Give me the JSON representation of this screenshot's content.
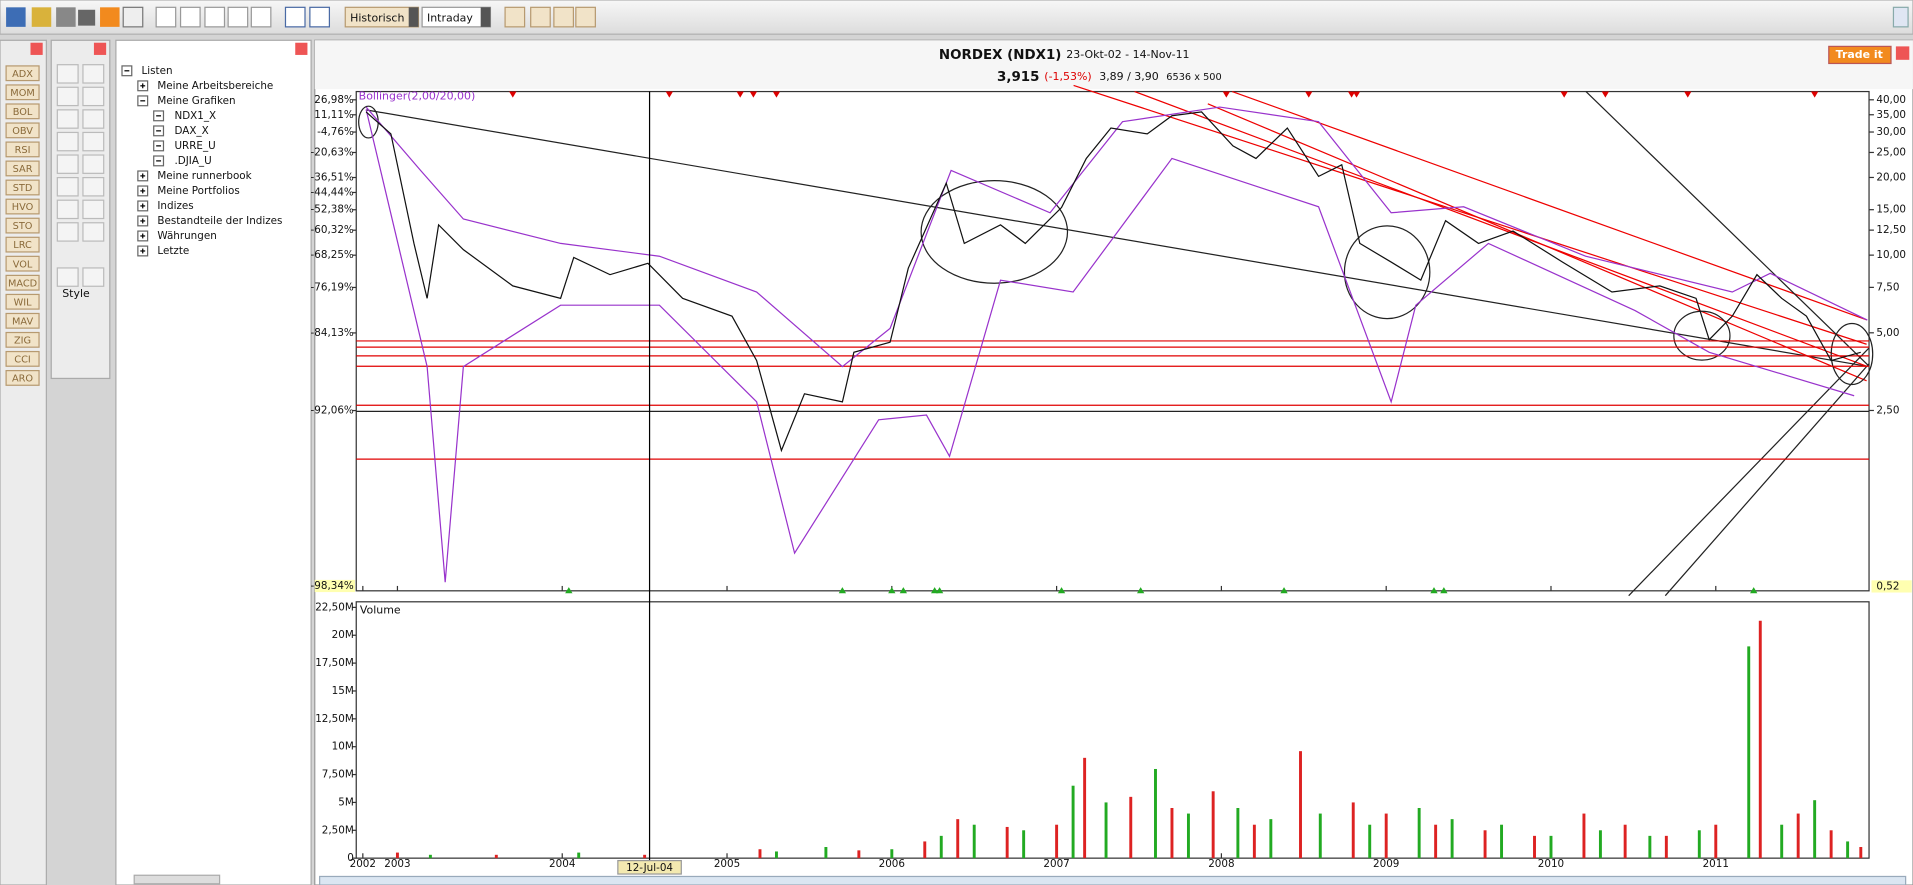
{
  "toolbar": {
    "period": "Historisch",
    "interval": "Intraday"
  },
  "indicators": [
    "ADX",
    "MOM",
    "BOL",
    "OBV",
    "RSI",
    "SAR",
    "STD",
    "HVO",
    "STO",
    "LRC",
    "VOL",
    "MACD",
    "WIL",
    "MAV",
    "ZIG",
    "CCI",
    "ARO"
  ],
  "tools": {
    "style": "Style"
  },
  "sidebar": {
    "tree": [
      "Listen",
      "Meine Arbeitsbereiche",
      "Meine Grafiken",
      "NDX1_X",
      "DAX_X",
      "URRE_U",
      ".DJIA_U",
      "Meine runnerbook",
      "Meine Portfolios",
      "Indizes",
      "Bestandteile der Indizes",
      "Währungen",
      "Letzte"
    ]
  },
  "window": {
    "title": "NORDEX (NDX1)",
    "range": "23-Okt-02 - 14-Nov-11",
    "last": "3,915",
    "change": "(-1,53%)",
    "bid_ask": "3,89 / 3,90",
    "size": "6536 x 500",
    "trade_button": "Trade it"
  },
  "chart_data": [
    {
      "type": "line",
      "log_scale": true,
      "x": [
        2002.81,
        2002.96,
        2003.1,
        2003.18,
        2003.25,
        2003.4,
        2003.7,
        2003.99,
        2004.07,
        2004.29,
        2004.52,
        2004.73,
        2005.03,
        2005.18,
        2005.33,
        2005.47,
        2005.7,
        2005.77,
        2005.99,
        2006.1,
        2006.33,
        2006.44,
        2006.66,
        2006.81,
        2007.03,
        2007.18,
        2007.33,
        2007.55,
        2007.7,
        2007.88,
        2008.07,
        2008.21,
        2008.4,
        2008.59,
        2008.73,
        2008.84,
        2009.03,
        2009.21,
        2009.36,
        2009.56,
        2009.77,
        2010.07,
        2010.37,
        2010.66,
        2010.88,
        2010.96,
        2011.1,
        2011.25,
        2011.4,
        2011.55,
        2011.7,
        2011.88
      ],
      "series": [
        {
          "color": "#111111",
          "values": [
            35.9,
            29.5,
            11.1,
            6.8,
            13.1,
            10.5,
            7.6,
            6.8,
            9.8,
            8.4,
            9.3,
            6.8,
            5.8,
            3.9,
            1.75,
            2.9,
            2.7,
            4.2,
            4.6,
            8.9,
            19.0,
            11.1,
            13.1,
            11.1,
            15.3,
            23.7,
            31.1,
            29.5,
            34.7,
            35.9,
            26.5,
            23.7,
            31.1,
            20.2,
            22.4,
            11.1,
            9.4,
            8.0,
            13.6,
            11.1,
            12.4,
            9.4,
            7.2,
            7.6,
            6.8,
            4.7,
            5.8,
            8.4,
            6.8,
            5.8,
            3.9,
            4.2
          ]
        }
      ],
      "bands": {
        "label": "Bollinger(2,00/20,00)",
        "color": "#9933cc",
        "upper": {
          "x": [
            2002.81,
            2003.14,
            2003.4,
            2003.99,
            2004.59,
            2005.18,
            2005.7,
            2005.99,
            2006.36,
            2006.96,
            2007.4,
            2007.99,
            2008.59,
            2009.03,
            2009.47,
            2010.21,
            2011.1,
            2011.33,
            2011.92
          ],
          "values": [
            37.5,
            21.3,
            13.8,
            11.1,
            9.9,
            7.2,
            3.7,
            5.2,
            21.3,
            14.6,
            32.9,
            37.5,
            32.9,
            14.6,
            15.4,
            9.9,
            7.2,
            8.5,
            5.6
          ]
        },
        "lower": {
          "x": [
            2002.81,
            2003.18,
            2003.29,
            2003.4,
            2003.99,
            2004.59,
            2005.18,
            2005.41,
            2005.92,
            2006.21,
            2006.35,
            2006.66,
            2007.1,
            2007.7,
            2008.59,
            2009.03,
            2009.18,
            2009.62,
            2010.51,
            2010.96,
            2011.84
          ],
          "values": [
            36.7,
            3.7,
            0.54,
            3.7,
            6.4,
            6.4,
            2.7,
            0.7,
            2.3,
            2.4,
            1.66,
            8.0,
            7.2,
            23.7,
            15.4,
            2.7,
            6.4,
            11.1,
            6.1,
            4.2,
            2.85
          ]
        }
      },
      "hlines": {
        "color": "#e00000",
        "values": [
          4.65,
          4.4,
          4.07,
          3.71,
          2.62,
          1.62
        ]
      },
      "sell_signals": {
        "color": "#dd0000",
        "x": [
          2003.7,
          2004.65,
          2005.08,
          2005.16,
          2005.3,
          2008.03,
          2008.53,
          2008.79,
          2008.82,
          2010.08,
          2010.33,
          2010.83,
          2011.6
        ]
      },
      "buy_signals": {
        "color": "#22aa22",
        "x": [
          2004.04,
          2005.7,
          2006.0,
          2006.07,
          2006.26,
          2006.29,
          2007.03,
          2007.51,
          2008.38,
          2009.29,
          2009.35,
          2011.23
        ]
      },
      "crosshair": {
        "x": 2004.53,
        "label": "12-Jul-04"
      },
      "xlim": [
        2002.75,
        2011.93
      ],
      "xticks": [
        {
          "value": 2002.79,
          "label": "2002"
        },
        2003,
        2004,
        2005,
        2006,
        2007,
        2008,
        2009,
        2010,
        2011
      ],
      "ylim": [
        0.5,
        44
      ],
      "yticks": [
        {
          "value": 40,
          "label": "40,00"
        },
        {
          "value": 35,
          "label": "35,00"
        },
        {
          "value": 30,
          "label": "30,00"
        },
        {
          "value": 25,
          "label": "25,00"
        },
        {
          "value": 20,
          "label": "20,00"
        },
        {
          "value": 15,
          "label": "15,00"
        },
        {
          "value": 12.5,
          "label": "12,50"
        },
        {
          "value": 10,
          "label": "10,00"
        },
        {
          "value": 7.5,
          "label": "7,50"
        },
        {
          "value": 5,
          "label": "5,00"
        },
        {
          "value": 2.5,
          "label": "2,50"
        }
      ],
      "y2lim": [
        -98.41,
        39.7
      ],
      "y2ticks": [
        {
          "value": 26.98,
          "label": "26,98%"
        },
        {
          "value": 11.11,
          "label": "11,11%"
        },
        {
          "value": -4.76,
          "label": "-4,76%"
        },
        {
          "value": -20.63,
          "label": "-20,63%"
        },
        {
          "value": -36.51,
          "label": "-36,51%"
        },
        {
          "value": -44.44,
          "label": "-44,44%"
        },
        {
          "value": -52.38,
          "label": "-52,38%"
        },
        {
          "value": -60.32,
          "label": "-60,32%"
        },
        {
          "value": -68.25,
          "label": "-68,25%"
        },
        {
          "value": -76.19,
          "label": "-76,19%"
        },
        {
          "value": -84.13,
          "label": "-84,13%"
        },
        {
          "value": -92.06,
          "label": "-92,06%"
        }
      ],
      "marker_ticks": {
        "y": {
          "value": 0.52,
          "label": "0,52"
        },
        "y2": {
          "value": -98.34,
          "label": "-98,34%"
        }
      }
    },
    {
      "type": "bar",
      "title": "Volume",
      "series": [
        {
          "color": "#22aa22",
          "x": [
            2003.2,
            2004.1,
            2005.3,
            2005.6,
            2006.0,
            2006.3,
            2006.5,
            2006.8,
            2007.1,
            2007.3,
            2007.6,
            2007.8,
            2008.1,
            2008.3,
            2008.6,
            2008.9,
            2009.2,
            2009.4,
            2009.7,
            2010.0,
            2010.3,
            2010.6,
            2010.9,
            2011.2,
            2011.4,
            2011.6,
            2011.8
          ],
          "values": [
            300000,
            500000,
            600000,
            1000000,
            800000,
            2000000,
            3000000,
            2500000,
            6500000,
            5000000,
            8000000,
            4000000,
            4500000,
            3500000,
            4000000,
            3000000,
            4500000,
            3500000,
            3000000,
            2000000,
            2500000,
            2000000,
            2500000,
            19000000,
            3000000,
            5200000,
            1500000
          ]
        },
        {
          "color": "#dd2222",
          "x": [
            2003.0,
            2003.6,
            2004.5,
            2005.2,
            2005.8,
            2006.2,
            2006.4,
            2006.7,
            2007.0,
            2007.17,
            2007.45,
            2007.7,
            2007.95,
            2008.2,
            2008.48,
            2008.8,
            2009.0,
            2009.3,
            2009.6,
            2009.9,
            2010.2,
            2010.45,
            2010.7,
            2011.0,
            2011.27,
            2011.5,
            2011.7,
            2011.88
          ],
          "values": [
            500000,
            300000,
            300000,
            800000,
            700000,
            1500000,
            3500000,
            2800000,
            3000000,
            9000000,
            5500000,
            4500000,
            6000000,
            3000000,
            9600000,
            5000000,
            4000000,
            3000000,
            2500000,
            2000000,
            4000000,
            3000000,
            2000000,
            3000000,
            21300000,
            4000000,
            2500000,
            1000000
          ]
        }
      ],
      "ylim": [
        0,
        23000000
      ],
      "yticks": [
        0,
        {
          "value": 2500000,
          "label": "2,50M"
        },
        {
          "value": 5000000,
          "label": "5M"
        },
        {
          "value": 7500000,
          "label": "7,50M"
        },
        {
          "value": 10000000,
          "label": "10M"
        },
        {
          "value": 12500000,
          "label": "12,50M"
        },
        {
          "value": 15000000,
          "label": "15M"
        },
        {
          "value": 17500000,
          "label": "17,50M"
        },
        {
          "value": 20000000,
          "label": "20M"
        },
        {
          "value": 22500000,
          "label": "22,50M"
        }
      ]
    }
  ]
}
